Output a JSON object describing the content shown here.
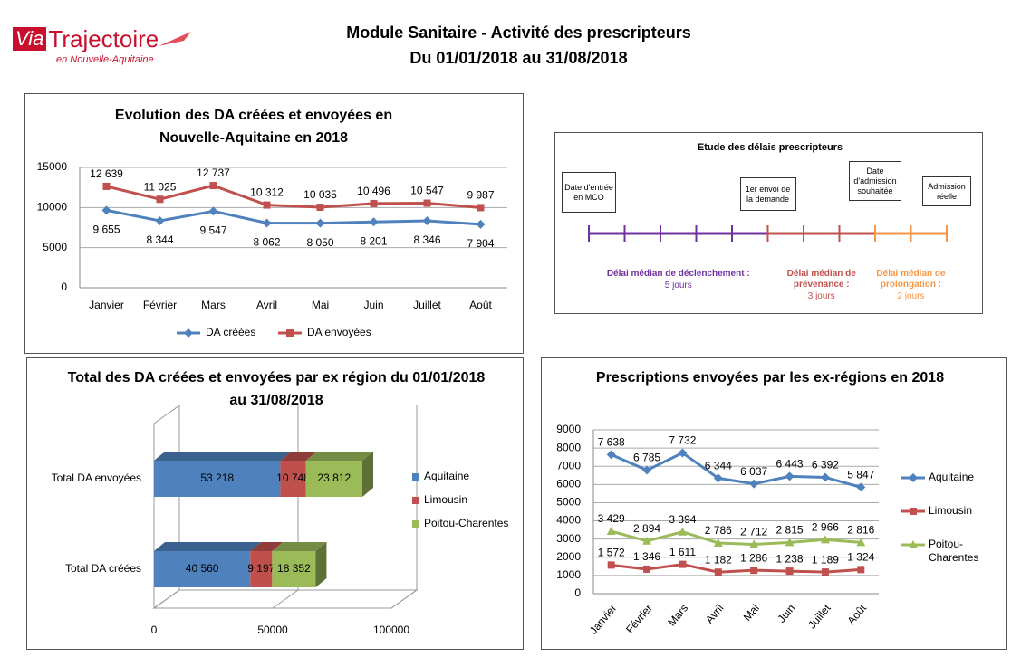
{
  "header": {
    "brand": [
      "Via",
      "Trajectoire"
    ],
    "tagline": "en Nouvelle-Aquitaine",
    "title": "Module Sanitaire - Activité des prescripteurs",
    "subtitle": "Du 01/01/2018 au 31/08/2018"
  },
  "chart_data": [
    {
      "type": "line",
      "title": "Evolution des DA créées et envoyées en Nouvelle-Aquitaine en 2018",
      "categories": [
        "Janvier",
        "Février",
        "Mars",
        "Avril",
        "Mai",
        "Juin",
        "Juillet",
        "Août"
      ],
      "series": [
        {
          "name": "DA créées",
          "color": "#4f81bd",
          "marker": "diamond",
          "values": [
            9655,
            8344,
            9547,
            8062,
            8050,
            8201,
            8346,
            7904
          ],
          "value_labels": [
            "9 655",
            "8 344",
            "9 547",
            "8 062",
            "8 050",
            "8 201",
            "8 346",
            "7 904"
          ]
        },
        {
          "name": "DA envoyées",
          "color": "#c0504d",
          "marker": "square",
          "values": [
            12639,
            11025,
            12737,
            10312,
            10035,
            10496,
            10547,
            9987
          ],
          "value_labels": [
            "12 639",
            "11 025",
            "12 737",
            "10 312",
            "10 035",
            "10 496",
            "10 547",
            "9 987"
          ]
        }
      ],
      "ylim": [
        0,
        15000
      ],
      "yticks": [
        0,
        5000,
        10000,
        15000
      ],
      "grid": true,
      "legend": "bottom"
    },
    {
      "type": "bar",
      "orientation": "horizontal",
      "stacked": true,
      "title": "Total des DA créées et envoyées par ex région du 01/01/2018 au 31/08/2018",
      "categories": [
        "Total DA envoyées",
        "Total DA créées"
      ],
      "series": [
        {
          "name": "Aquitaine",
          "color": "#4f81bd",
          "values": [
            53218,
            40560
          ],
          "value_labels": [
            "53 218",
            "40 560"
          ]
        },
        {
          "name": "Limousin",
          "color": "#c0504d",
          "values": [
            10748,
            9197
          ],
          "value_labels": [
            "10 748",
            "9 197"
          ]
        },
        {
          "name": "Poitou-Charentes",
          "color": "#9bbb59",
          "values": [
            23812,
            18352
          ],
          "value_labels": [
            "23 812",
            "18 352"
          ]
        }
      ],
      "xlim": [
        0,
        100000
      ],
      "xticks": [
        0,
        50000,
        100000
      ],
      "legend": "right"
    },
    {
      "type": "line",
      "title": "Prescriptions envoyées par les ex-régions en 2018",
      "categories": [
        "Janvier",
        "Février",
        "Mars",
        "Avril",
        "Mai",
        "Juin",
        "Juillet",
        "Août"
      ],
      "series": [
        {
          "name": "Aquitaine",
          "color": "#4f81bd",
          "marker": "diamond",
          "values": [
            7638,
            6785,
            7732,
            6344,
            6037,
            6443,
            6392,
            5847
          ],
          "value_labels": [
            "7 638",
            "6 785",
            "7 732",
            "6 344",
            "6 037",
            "6 443",
            "6 392",
            "5 847"
          ]
        },
        {
          "name": "Limousin",
          "color": "#c0504d",
          "marker": "square",
          "values": [
            1572,
            1346,
            1611,
            1182,
            1286,
            1238,
            1189,
            1324
          ],
          "value_labels": [
            "1 572",
            "1 346",
            "1 611",
            "1 182",
            "1 286",
            "1 238",
            "1 189",
            "1 324"
          ]
        },
        {
          "name": "Poitou-Charentes",
          "color": "#9bbb59",
          "marker": "triangle",
          "values": [
            3429,
            2894,
            3394,
            2786,
            2712,
            2815,
            2966,
            2816
          ],
          "value_labels": [
            "3 429",
            "2 894",
            "3 394",
            "2 786",
            "2 712",
            "2 815",
            "2 966",
            "2 816"
          ]
        }
      ],
      "ylim": [
        0,
        9000
      ],
      "yticks": [
        0,
        1000,
        2000,
        3000,
        4000,
        5000,
        6000,
        7000,
        8000,
        9000
      ],
      "grid": true,
      "legend": "right"
    }
  ],
  "timeline": {
    "title": "Etude des délais prescripteurs",
    "milestones": [
      "Date d'entrée en MCO",
      "1er envoi de la demande",
      "Date d'admission souhaitée",
      "Admission réelle"
    ],
    "periods": [
      {
        "label": "Délai médian de déclenchement :",
        "duration": {
          "value": 5,
          "label": "5 jours"
        },
        "color": "#7030a0"
      },
      {
        "label": "Délai médian de prévenance :",
        "duration": {
          "value": 3,
          "label": "3 jours"
        },
        "color": "#c0504d"
      },
      {
        "label": "Délai médian de prolongation :",
        "duration": {
          "value": 2,
          "label": "2 jours"
        },
        "color": "#f79646"
      }
    ]
  }
}
